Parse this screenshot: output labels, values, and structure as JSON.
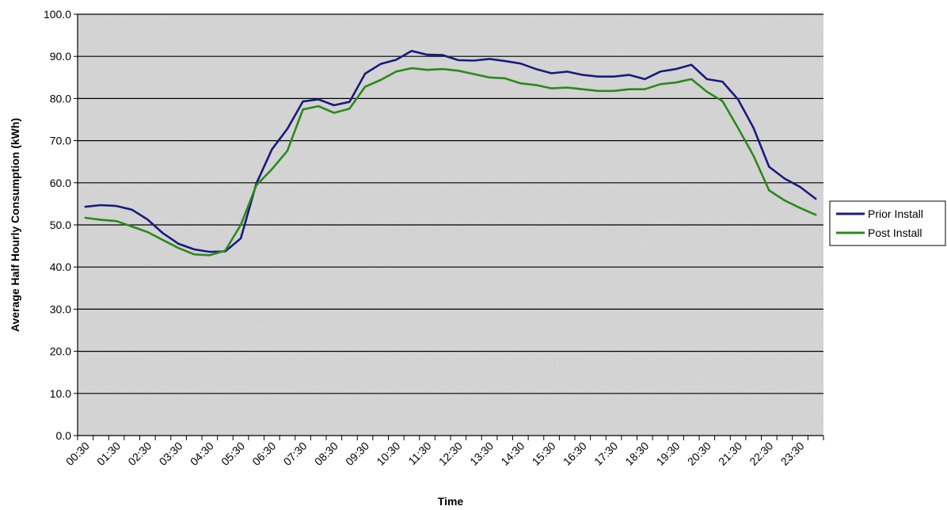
{
  "chart_data": {
    "type": "line",
    "title": "",
    "xlabel": "Time",
    "ylabel": "Average Half Hourly Consumption (kWh)",
    "ylim": [
      0,
      100
    ],
    "y_ticks": [
      "0.0",
      "10.0",
      "20.0",
      "30.0",
      "40.0",
      "50.0",
      "60.0",
      "70.0",
      "80.0",
      "90.0",
      "100.0"
    ],
    "x_tick_labels": [
      "00:30",
      "01:30",
      "02:30",
      "03:30",
      "04:30",
      "05:30",
      "06:30",
      "07:30",
      "08:30",
      "09:30",
      "10:30",
      "11:30",
      "12:30",
      "13:30",
      "14:30",
      "15:30",
      "16:30",
      "17:30",
      "18:30",
      "19:30",
      "20:30",
      "21:30",
      "22:30",
      "23:30"
    ],
    "x": [
      "00:30",
      "01:00",
      "01:30",
      "02:00",
      "02:30",
      "03:00",
      "03:30",
      "04:00",
      "04:30",
      "05:00",
      "05:30",
      "06:00",
      "06:30",
      "07:00",
      "07:30",
      "08:00",
      "08:30",
      "09:00",
      "09:30",
      "10:00",
      "10:30",
      "11:00",
      "11:30",
      "12:00",
      "12:30",
      "13:00",
      "13:30",
      "14:00",
      "14:30",
      "15:00",
      "15:30",
      "16:00",
      "16:30",
      "17:00",
      "17:30",
      "18:00",
      "18:30",
      "19:00",
      "19:30",
      "20:00",
      "20:30",
      "21:00",
      "21:30",
      "22:00",
      "22:30",
      "23:00",
      "23:30",
      "00:00"
    ],
    "grid": true,
    "legend_position": "right",
    "series": [
      {
        "name": "Prior Install",
        "color": "#1a1a80",
        "values": [
          54.3,
          54.7,
          54.5,
          53.6,
          51.3,
          48.0,
          45.5,
          44.2,
          43.6,
          43.7,
          46.8,
          59.8,
          67.9,
          72.8,
          79.3,
          79.8,
          78.4,
          79.2,
          85.9,
          88.2,
          89.2,
          91.3,
          90.4,
          90.3,
          89.1,
          89.0,
          89.4,
          88.9,
          88.3,
          87.0,
          86.0,
          86.4,
          85.6,
          85.2,
          85.2,
          85.6,
          84.6,
          86.4,
          87.0,
          88.0,
          84.6,
          84.0,
          79.8,
          73.0,
          63.8,
          61.0,
          59.0,
          56.2
        ]
      },
      {
        "name": "Post Install",
        "color": "#2a8a1a",
        "values": [
          51.7,
          51.2,
          50.9,
          49.6,
          48.3,
          46.4,
          44.5,
          43.0,
          42.8,
          43.9,
          50.0,
          59.4,
          63.2,
          67.6,
          77.4,
          78.2,
          76.6,
          77.6,
          82.8,
          84.4,
          86.4,
          87.2,
          86.8,
          87.0,
          86.6,
          85.8,
          85.0,
          84.8,
          83.6,
          83.2,
          82.4,
          82.6,
          82.2,
          81.8,
          81.8,
          82.2,
          82.2,
          83.4,
          83.8,
          84.6,
          81.6,
          79.4,
          73.0,
          66.4,
          58.2,
          55.8,
          54.0,
          52.4
        ]
      }
    ]
  }
}
